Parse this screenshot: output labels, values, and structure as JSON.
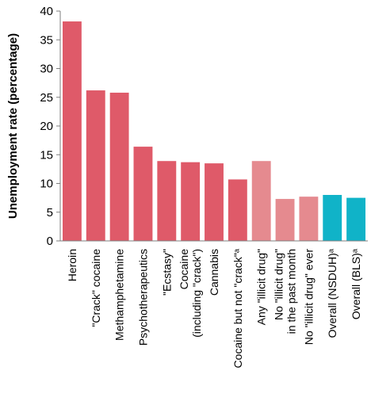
{
  "chart_data": {
    "type": "bar",
    "title": "",
    "xlabel": "",
    "ylabel": "Unemployment rate (percentage)",
    "ylim": [
      0,
      40
    ],
    "yticks": [
      "0",
      "5",
      "10",
      "15",
      "20",
      "25",
      "30",
      "35",
      "40"
    ],
    "grid": false,
    "legend": "none",
    "categories": [
      [
        "Heroin"
      ],
      [
        "\"Crack\" cocaine"
      ],
      [
        "Methamphetamine"
      ],
      [
        "Psychotherapeutics"
      ],
      [
        "\"Ecstasy\""
      ],
      [
        "Cocaine",
        "(including \"crack\")"
      ],
      [
        "Cannabis"
      ],
      [
        "Cocaine but not \"crack\"ᵃ"
      ],
      [
        "Any \"illicit drug\""
      ],
      [
        "No \"illicit drug\"",
        "in the past month"
      ],
      [
        "No \"illicit drug\" ever"
      ],
      [
        "Overall (NSDUH)ᵃ"
      ],
      [
        "Overall (BLS)ᵃ"
      ]
    ],
    "values": [
      38.2,
      26.2,
      25.8,
      16.4,
      13.9,
      13.7,
      13.5,
      10.7,
      13.9,
      7.3,
      7.7,
      8.0,
      7.5
    ],
    "bar_colors": [
      "#df5a69",
      "#df5a69",
      "#df5a69",
      "#df5a69",
      "#df5a69",
      "#df5a69",
      "#df5a69",
      "#df5a69",
      "#e58a8f",
      "#e58a8f",
      "#e58a8f",
      "#10b3c8",
      "#10b3c8"
    ]
  }
}
